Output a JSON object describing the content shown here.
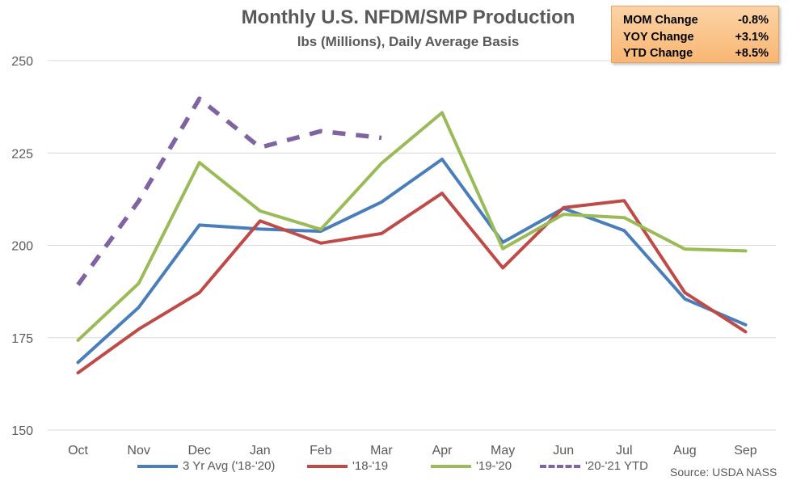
{
  "chart_data": {
    "type": "line",
    "title": "Monthly U.S. NFDM/SMP Production",
    "subtitle": "lbs (Millions), Daily Average Basis",
    "categories": [
      "Oct",
      "Nov",
      "Dec",
      "Jan",
      "Feb",
      "Mar",
      "Apr",
      "May",
      "Jun",
      "Jul",
      "Aug",
      "Sep"
    ],
    "ylim": [
      150,
      250
    ],
    "yticks": [
      150,
      175,
      200,
      225,
      250
    ],
    "grid": "horizontal",
    "legend_position": "bottom",
    "series": [
      {
        "name": "3 Yr Avg ('18-'20)",
        "color": "#4a7ebb",
        "dash": false,
        "values": [
          168.3,
          183.2,
          205.5,
          204.4,
          203.8,
          211.7,
          223.3,
          200.8,
          210.0,
          204.0,
          185.5,
          178.5
        ]
      },
      {
        "name": "'18-'19",
        "color": "#be4b48",
        "dash": false,
        "values": [
          165.5,
          177.3,
          187.2,
          206.6,
          200.6,
          203.2,
          214.1,
          193.9,
          210.2,
          212.1,
          187.2,
          176.6
        ]
      },
      {
        "name": "'19-'20",
        "color": "#9bbb59",
        "dash": false,
        "values": [
          174.3,
          189.7,
          222.4,
          209.3,
          204.3,
          222.2,
          235.9,
          199.1,
          208.4,
          207.5,
          199.0,
          198.5
        ]
      },
      {
        "name": "'20-'21 YTD",
        "color": "#8064a2",
        "dash": true,
        "values": [
          189.3,
          212.0,
          239.7,
          226.5,
          230.9,
          229.1,
          null,
          null,
          null,
          null,
          null,
          null
        ]
      }
    ]
  },
  "change_box": {
    "rows": [
      {
        "label": "MOM Change",
        "value": "-0.8%"
      },
      {
        "label": "YOY Change",
        "value": "+3.1%"
      },
      {
        "label": "YTD Change",
        "value": "+8.5%"
      }
    ],
    "background": "#f9c48e"
  },
  "source": "Source: USDA NASS"
}
